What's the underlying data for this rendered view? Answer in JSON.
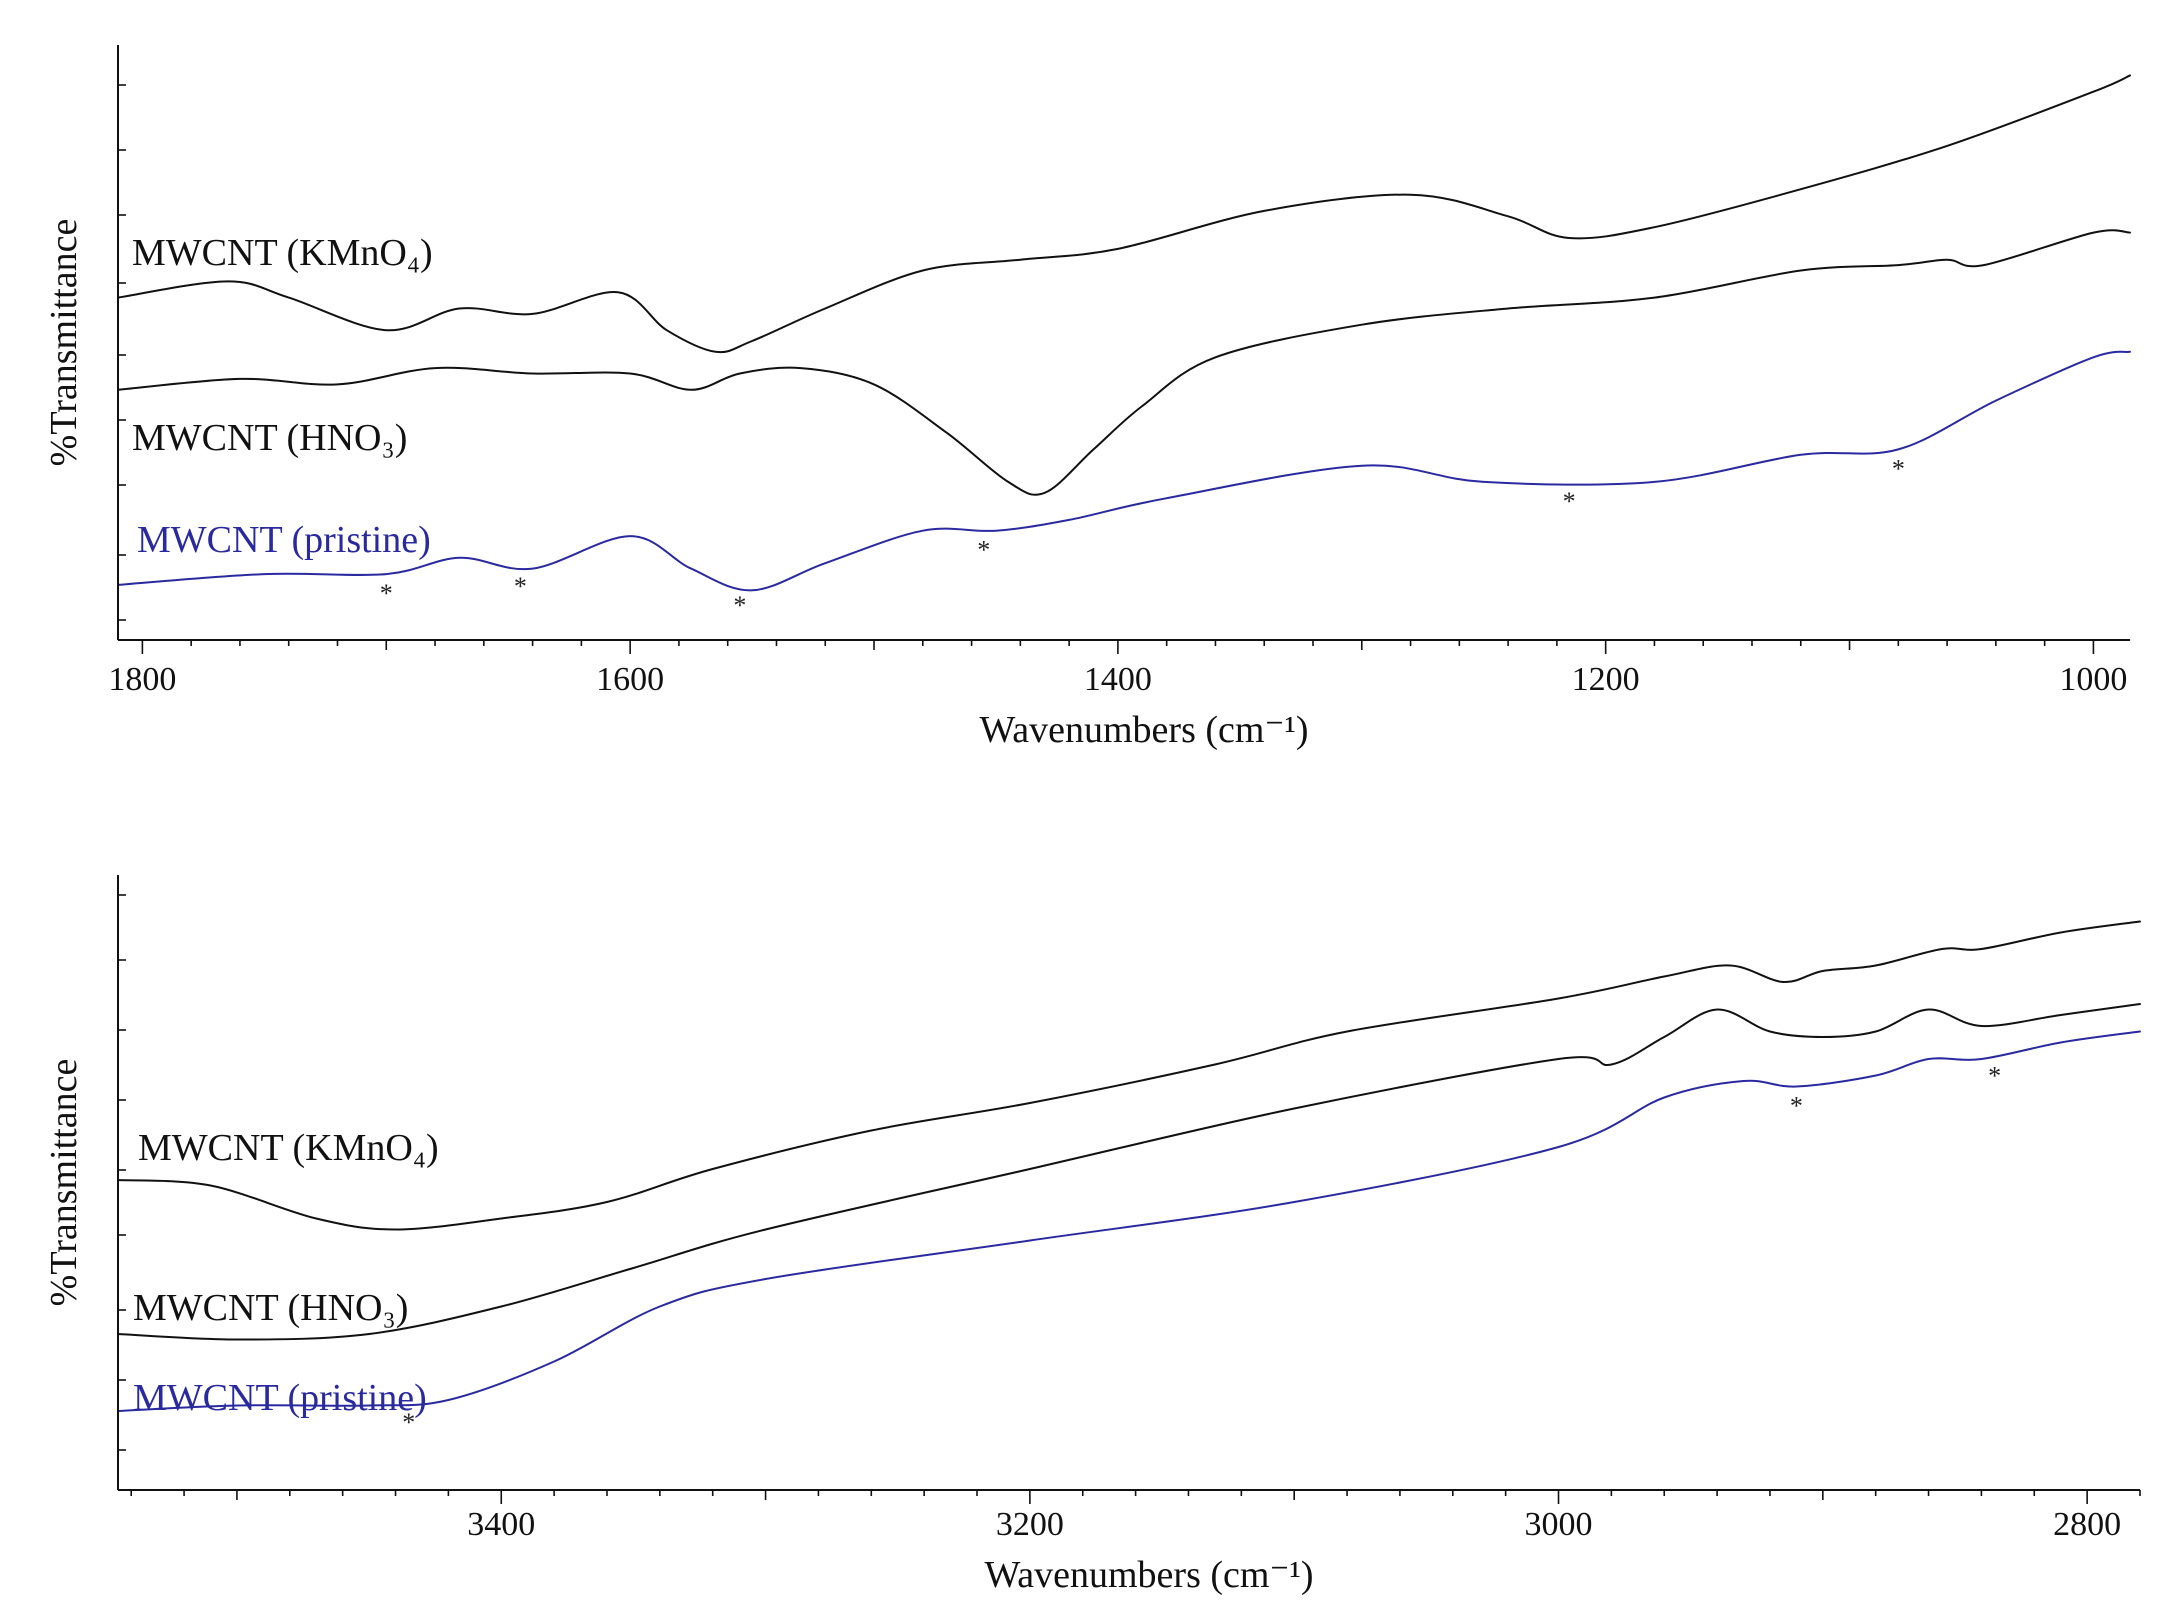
{
  "chart_data": [
    {
      "type": "line",
      "title": "",
      "xlabel": "Wavenumbers (cm⁻¹)",
      "ylabel": "%Transmittance",
      "xlim": [
        1810,
        985
      ],
      "ylim": [
        0,
        100
      ],
      "xticks": [
        1800,
        1600,
        1400,
        1200,
        1000
      ],
      "grid": false,
      "series": [
        {
          "name": "MWCNT (KMnO₄)",
          "color": "#111111",
          "x": [
            1810,
            1765,
            1740,
            1700,
            1670,
            1640,
            1605,
            1585,
            1565,
            1550,
            1520,
            1480,
            1440,
            1400,
            1340,
            1280,
            1240,
            1215,
            1180,
            1120,
            1060,
            1000,
            985
          ],
          "y": [
            58,
            61,
            58,
            52,
            56,
            55,
            59,
            52,
            48,
            50,
            56,
            63,
            65,
            67,
            74,
            77,
            73,
            69,
            71,
            78,
            86,
            96,
            99
          ]
        },
        {
          "name": "MWCNT (HNO₃)",
          "color": "#111111",
          "x": [
            1810,
            1760,
            1720,
            1680,
            1640,
            1600,
            1575,
            1555,
            1530,
            1500,
            1470,
            1445,
            1430,
            1410,
            1390,
            1360,
            1300,
            1240,
            1180,
            1120,
            1080,
            1060,
            1045,
            1000,
            985
          ],
          "y": [
            41,
            43,
            42,
            45,
            44,
            44,
            41,
            44,
            45,
            42,
            33,
            24,
            22,
            30,
            38,
            47,
            53,
            56,
            58,
            63,
            64,
            65,
            64,
            70,
            70
          ],
          "hidden_x_values": true
        },
        {
          "name": "MWCNT (pristine)",
          "color": "#2a2aa0",
          "x": [
            1810,
            1750,
            1700,
            1670,
            1640,
            1600,
            1575,
            1550,
            1520,
            1480,
            1450,
            1420,
            1380,
            1300,
            1250,
            1180,
            1120,
            1080,
            1040,
            1000,
            985
          ],
          "y": [
            5,
            7,
            7,
            10,
            8,
            14,
            8,
            4,
            9,
            15,
            15,
            17,
            21,
            27,
            24,
            24,
            29,
            30,
            39,
            47,
            48
          ],
          "markers_x": [
            1700,
            1645,
            1555,
            1455,
            1215,
            1080
          ]
        }
      ]
    },
    {
      "type": "line",
      "title": "",
      "xlabel": "Wavenumbers (cm⁻¹)",
      "ylabel": "%Transmittance",
      "xlim": [
        3545,
        2780
      ],
      "ylim": [
        0,
        100
      ],
      "xticks": [
        3400,
        3200,
        3000,
        2800
      ],
      "grid": false,
      "series": [
        {
          "name": "MWCNT (KMnO₄)",
          "color": "#111111",
          "x": [
            3545,
            3510,
            3470,
            3440,
            3400,
            3360,
            3320,
            3260,
            3200,
            3130,
            3080,
            3000,
            2960,
            2935,
            2915,
            2900,
            2880,
            2855,
            2840,
            2810,
            2780
          ],
          "y": [
            50,
            49,
            43,
            41,
            43,
            46,
            52,
            59,
            64,
            71,
            77,
            83,
            87,
            89,
            86,
            88,
            89,
            92,
            92,
            95,
            97
          ],
          "hidden_x_values": true
        },
        {
          "name": "MWCNT (HNO₃)",
          "color": "#111111",
          "x": [
            3545,
            3500,
            3450,
            3400,
            3350,
            3300,
            3200,
            3100,
            3000,
            2980,
            2960,
            2940,
            2920,
            2900,
            2880,
            2860,
            2840,
            2810,
            2780
          ],
          "y": [
            22,
            21,
            22,
            27,
            34,
            41,
            52,
            63,
            72,
            71,
            76,
            81,
            77,
            76,
            77,
            81,
            78,
            80,
            82
          ],
          "hidden_x_values": true
        },
        {
          "name": "MWCNT (pristine)",
          "color": "#2a2aa0",
          "x": [
            3545,
            3500,
            3450,
            3420,
            3380,
            3340,
            3300,
            3200,
            3100,
            3000,
            2960,
            2930,
            2910,
            2880,
            2860,
            2840,
            2810,
            2780
          ],
          "y": [
            8,
            9,
            9,
            10,
            17,
            27,
            32,
            39,
            46,
            56,
            65,
            68,
            67,
            69,
            72,
            72,
            75,
            77
          ],
          "markers_x": [
            3435,
            2910,
            2835
          ]
        }
      ]
    }
  ],
  "panels": [
    {
      "labels": {
        "kmno4": "MWCNT (KMnO₄)",
        "hno3": "MWCNT (HNO₃)",
        "pristine": "MWCNT (pristine)"
      },
      "marker_symbol": "*"
    },
    {
      "labels": {
        "kmno4": "MWCNT (KMnO₄)",
        "hno3": "MWCNT (HNO₃)",
        "pristine": "MWCNT (pristine)"
      },
      "marker_symbol": "*"
    }
  ],
  "colors": {
    "axis": "#111111",
    "pristine": "#2a2aa0",
    "treated": "#111111"
  }
}
